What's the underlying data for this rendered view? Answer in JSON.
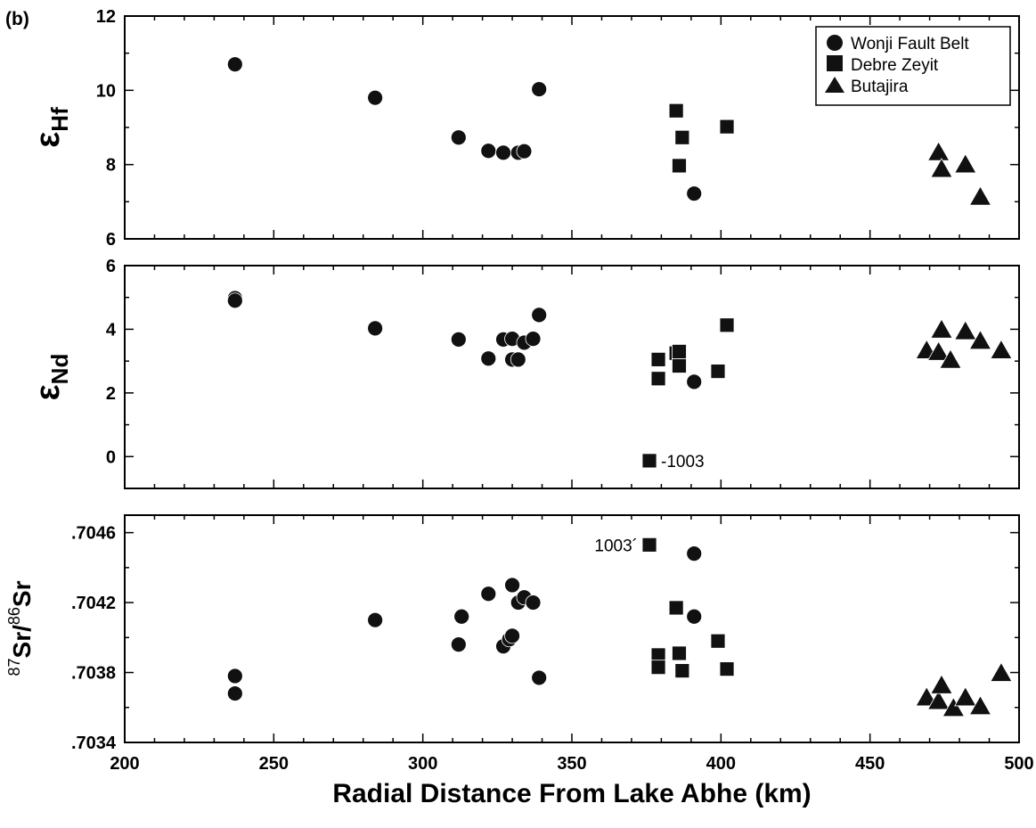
{
  "chart_data": {
    "type": "scatter",
    "panel_tag": {
      "open": "(",
      "letter": "b",
      "close": ")"
    },
    "xlabel": "Radial Distance From Lake Abhe (km)",
    "xlim": [
      200,
      500
    ],
    "x_ticks": [
      "200",
      "250",
      "300",
      "350",
      "400",
      "450",
      "500"
    ],
    "legend": {
      "position": "top-right",
      "entries": [
        {
          "name": "Wonji Fault Belt",
          "marker": "circle"
        },
        {
          "name": "Debre Zeyit",
          "marker": "square"
        },
        {
          "name": "Butajira",
          "marker": "triangle"
        }
      ]
    },
    "panels": [
      {
        "ylabel": {
          "main": "ε",
          "sub": "Hf"
        },
        "ylim": [
          6,
          12
        ],
        "y_ticks": [
          {
            "v": 6,
            "label": "6"
          },
          {
            "v": 8,
            "label": "8"
          },
          {
            "v": 10,
            "label": "10"
          },
          {
            "v": 12,
            "label": "12"
          }
        ],
        "series": [
          {
            "name": "Wonji Fault Belt",
            "marker": "circle",
            "points": [
              [
                237,
                10.7
              ],
              [
                284,
                9.8
              ],
              [
                312,
                8.73
              ],
              [
                322,
                8.37
              ],
              [
                327,
                8.32
              ],
              [
                332,
                8.32
              ],
              [
                334,
                8.36
              ],
              [
                339,
                10.03
              ],
              [
                391,
                7.22
              ]
            ]
          },
          {
            "name": "Debre Zeyit",
            "marker": "square",
            "points": [
              [
                385,
                9.45
              ],
              [
                387,
                8.73
              ],
              [
                386,
                7.97
              ],
              [
                402,
                9.02
              ]
            ]
          },
          {
            "name": "Butajira",
            "marker": "triangle",
            "points": [
              [
                473,
                8.3
              ],
              [
                474,
                7.85
              ],
              [
                482,
                7.97
              ],
              [
                487,
                7.1
              ]
            ]
          }
        ],
        "annotations": []
      },
      {
        "ylabel": {
          "main": "ε",
          "sub": "Nd"
        },
        "ylim": [
          -1,
          6
        ],
        "y_ticks": [
          {
            "v": 0,
            "label": "0"
          },
          {
            "v": 2,
            "label": "2"
          },
          {
            "v": 4,
            "label": "4"
          },
          {
            "v": 6,
            "label": "6"
          }
        ],
        "series": [
          {
            "name": "Wonji Fault Belt",
            "marker": "circle",
            "points": [
              [
                237,
                4.98
              ],
              [
                237,
                4.9
              ],
              [
                284,
                4.03
              ],
              [
                312,
                3.68
              ],
              [
                322,
                3.08
              ],
              [
                327,
                3.68
              ],
              [
                330,
                3.7
              ],
              [
                330,
                3.05
              ],
              [
                332,
                3.05
              ],
              [
                334,
                3.58
              ],
              [
                337,
                3.7
              ],
              [
                339,
                4.45
              ],
              [
                391,
                2.35
              ]
            ]
          },
          {
            "name": "Debre Zeyit",
            "marker": "square",
            "points": [
              [
                379,
                3.05
              ],
              [
                379,
                2.45
              ],
              [
                385,
                3.25
              ],
              [
                386,
                3.3
              ],
              [
                386,
                2.85
              ],
              [
                399,
                2.68
              ],
              [
                402,
                4.13
              ],
              [
                376,
                -0.13
              ]
            ]
          },
          {
            "name": "Butajira",
            "marker": "triangle",
            "points": [
              [
                469,
                3.3
              ],
              [
                473,
                3.25
              ],
              [
                474,
                3.95
              ],
              [
                477,
                3.0
              ],
              [
                482,
                3.9
              ],
              [
                487,
                3.6
              ],
              [
                494,
                3.3
              ]
            ]
          }
        ],
        "annotations": [
          {
            "text": "-1003",
            "x": 376,
            "y": -0.13,
            "side": "right"
          }
        ]
      },
      {
        "ylabel": {
          "sup1": "87",
          "main1": "Sr/",
          "sup2": "86",
          "main2": "Sr"
        },
        "ylim": [
          0.7034,
          0.7047
        ],
        "y_ticks": [
          {
            "v": 0.7034,
            "label": ".7034"
          },
          {
            "v": 0.7038,
            "label": ".7038"
          },
          {
            "v": 0.7042,
            "label": ".7042"
          },
          {
            "v": 0.7046,
            "label": ".7046"
          }
        ],
        "series": [
          {
            "name": "Wonji Fault Belt",
            "marker": "circle",
            "points": [
              [
                237,
                0.70378
              ],
              [
                237,
                0.70368
              ],
              [
                284,
                0.7041
              ],
              [
                312,
                0.70396
              ],
              [
                313,
                0.70412
              ],
              [
                322,
                0.70425
              ],
              [
                327,
                0.70395
              ],
              [
                329,
                0.70399
              ],
              [
                330,
                0.70401
              ],
              [
                330,
                0.7043
              ],
              [
                332,
                0.7042
              ],
              [
                334,
                0.70423
              ],
              [
                337,
                0.7042
              ],
              [
                339,
                0.70377
              ],
              [
                391,
                0.70448
              ],
              [
                391,
                0.70412
              ]
            ]
          },
          {
            "name": "Debre Zeyit",
            "marker": "square",
            "points": [
              [
                376,
                0.70453
              ],
              [
                379,
                0.7039
              ],
              [
                379,
                0.70383
              ],
              [
                385,
                0.70417
              ],
              [
                386,
                0.70391
              ],
              [
                387,
                0.70381
              ],
              [
                399,
                0.70398
              ],
              [
                402,
                0.70382
              ]
            ]
          },
          {
            "name": "Butajira",
            "marker": "triangle",
            "points": [
              [
                469,
                0.70365
              ],
              [
                473,
                0.70363
              ],
              [
                474,
                0.70372
              ],
              [
                478,
                0.70359
              ],
              [
                482,
                0.70365
              ],
              [
                487,
                0.7036
              ],
              [
                494,
                0.70379
              ]
            ]
          }
        ],
        "annotations": [
          {
            "text": "1003´",
            "x": 376,
            "y": 0.70453,
            "side": "left"
          }
        ]
      }
    ]
  }
}
